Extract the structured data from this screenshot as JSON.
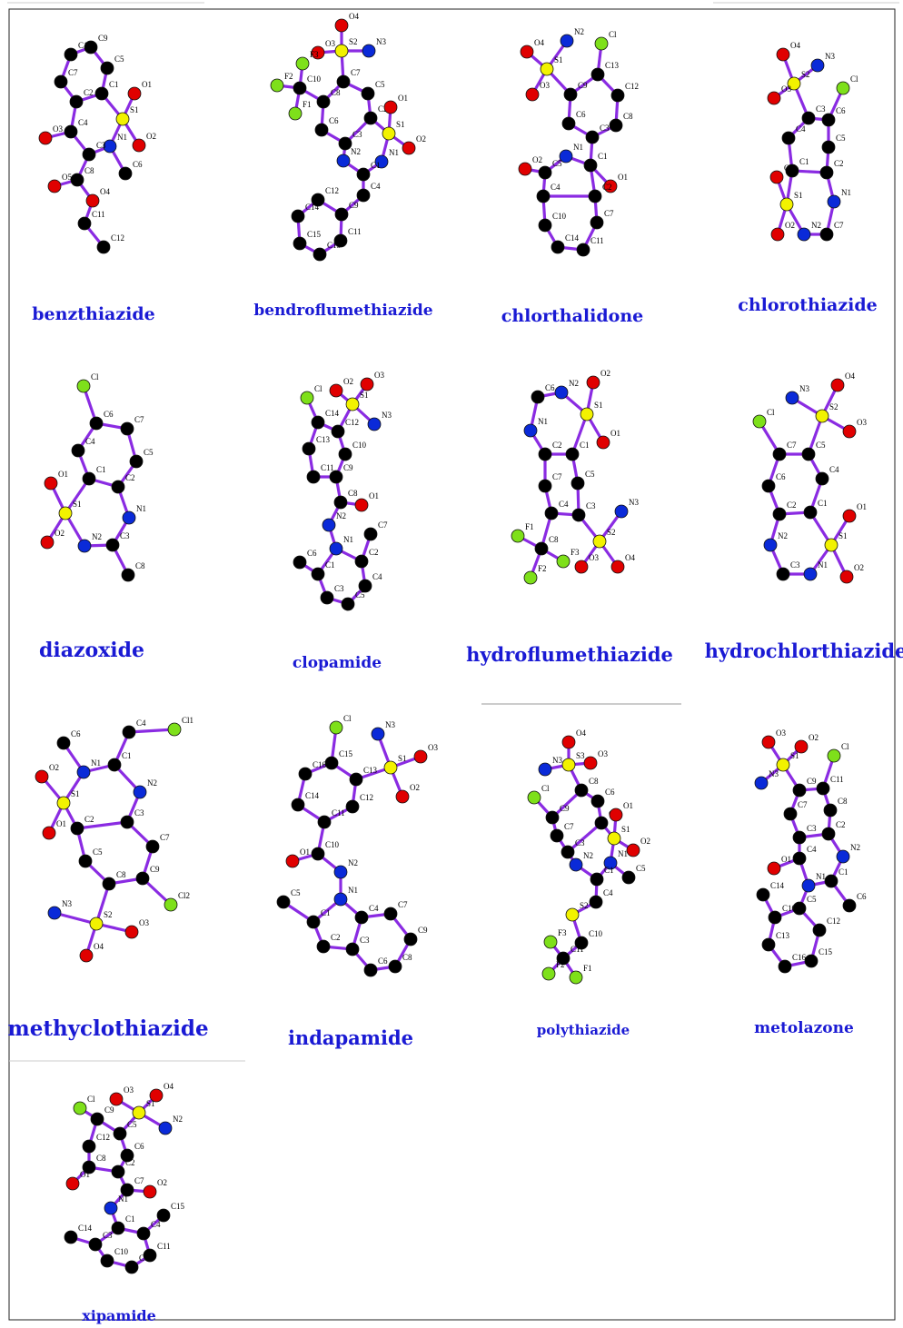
{
  "colors": {
    "carbon": "#000000",
    "oxygen": "#e00000",
    "nitrogen": "#0a2ad8",
    "sulfur": "#f2f200",
    "halogen": "#7ee01a",
    "bond": "#8a2be2",
    "name": "#1a1ad4"
  },
  "molecules": [
    {
      "name": "benzthiazide",
      "atoms": [
        "C10",
        "C9",
        "C5",
        "C1",
        "C2",
        "C7",
        "C4",
        "O3",
        "S1",
        "O1",
        "O2",
        "N1",
        "C3",
        "C6",
        "C8",
        "O5",
        "O4",
        "C11",
        "C12"
      ],
      "bonds": [
        "C10-C9",
        "C9-C5",
        "C5-C1",
        "C1-C2",
        "C2-C7",
        "C7-C10",
        "C1-S1",
        "S1-O1",
        "S1-O2",
        "S1-N1",
        "C2-C4",
        "C4-O3",
        "C4-C3",
        "C3-N1",
        "N1-C6",
        "C3-C8",
        "C8-O5",
        "C8-O4",
        "O4-C11",
        "C11-C12"
      ]
    },
    {
      "name": "bendroflumethiazide",
      "atoms": [
        "O4",
        "S2",
        "O3",
        "N3",
        "C7",
        "F3",
        "F2",
        "F1",
        "C10",
        "C8",
        "C5",
        "C2",
        "O1",
        "S1",
        "O2",
        "C6",
        "C3",
        "N2",
        "N1",
        "C1",
        "C4",
        "C9",
        "C12",
        "C14",
        "C15",
        "C13",
        "C11"
      ],
      "bonds": [
        "O4-S2",
        "S2-O3",
        "S2-N3",
        "S2-C7",
        "C7-C5",
        "C5-C2",
        "C2-C3",
        "C3-C6",
        "C6-C8",
        "C8-C7",
        "C8-C10",
        "C10-F1",
        "C10-F2",
        "C10-F3",
        "C2-S1",
        "S1-O1",
        "S1-O2",
        "S1-N1",
        "N1-C1",
        "C1-N2",
        "N2-C3",
        "C1-C4",
        "C4-C9",
        "C9-C12",
        "C12-C14",
        "C14-C15",
        "C15-C13",
        "C13-C11",
        "C11-C9"
      ]
    },
    {
      "name": "chlorthalidone",
      "atoms": [
        "N2",
        "S1",
        "O4",
        "O3",
        "Cl",
        "C13",
        "C12",
        "C8",
        "C3",
        "C6",
        "C9",
        "N1",
        "C5",
        "O2",
        "C1",
        "O1",
        "C4",
        "C2",
        "C10",
        "C7",
        "C14",
        "C11"
      ],
      "bonds": [
        "S1-N2",
        "S1-O4",
        "S1-O3",
        "S1-C9",
        "C9-C13",
        "C13-C12",
        "C12-C8",
        "C8-C3",
        "C3-C6",
        "C6-C9",
        "C13-Cl",
        "C3-C1",
        "C1-N1",
        "N1-C5",
        "C5-O2",
        "C5-C4",
        "C4-C2",
        "C2-C1",
        "C1-O1",
        "C4-C10",
        "C10-C14",
        "C14-C11",
        "C11-C7",
        "C7-C2"
      ]
    },
    {
      "name": "chlorothiazide",
      "atoms": [
        "O4",
        "S2",
        "N3",
        "O3",
        "Cl",
        "C3",
        "C6",
        "C4",
        "C5",
        "C1",
        "C2",
        "O1",
        "S1",
        "N1",
        "O2",
        "N2",
        "C7"
      ],
      "bonds": [
        "S2-O4",
        "S2-O3",
        "S2-N3",
        "S2-C3",
        "C3-C6",
        "C6-C5",
        "C5-C2",
        "C2-C1",
        "C1-C4",
        "C4-C3",
        "C6-Cl",
        "C1-S1",
        "S1-O1",
        "S1-O2",
        "S1-N2",
        "N2-C7",
        "C7-N1",
        "N1-C2"
      ]
    },
    {
      "name": "diazoxide",
      "atoms": [
        "Cl",
        "C6",
        "C7",
        "C4",
        "C5",
        "C1",
        "C2",
        "O1",
        "S1",
        "N1",
        "O2",
        "N2",
        "C3",
        "C8"
      ],
      "bonds": [
        "Cl-C6",
        "C6-C7",
        "C7-C5",
        "C5-C2",
        "C2-C1",
        "C1-C4",
        "C4-C6",
        "C1-S1",
        "S1-O1",
        "S1-O2",
        "S1-N2",
        "N2-C3",
        "C3-N1",
        "N1-C2",
        "C3-C8"
      ]
    },
    {
      "name": "clopamide",
      "atoms": [
        "Cl",
        "O2",
        "S1",
        "O3",
        "N3",
        "C14",
        "C12",
        "C13",
        "C10",
        "C11",
        "C9",
        "C8",
        "O1",
        "N2",
        "N1",
        "C7",
        "C2",
        "C6",
        "C1",
        "C4",
        "C3",
        "C5"
      ],
      "bonds": [
        "C14-Cl",
        "C14-C12",
        "C12-C10",
        "C10-C9",
        "C9-C11",
        "C11-C13",
        "C13-C14",
        "C12-S1",
        "S1-O2",
        "S1-O3",
        "S1-N3",
        "C9-C8",
        "C8-O1",
        "C8-N2",
        "N2-N1",
        "N1-C2",
        "C2-C4",
        "C4-C5",
        "C5-C3",
        "C3-C1",
        "C1-N1",
        "C2-C7",
        "C1-C6"
      ]
    },
    {
      "name": "hydroflumethiazide",
      "atoms": [
        "C6",
        "N2",
        "O2",
        "S1",
        "O1",
        "N1",
        "C2",
        "C1",
        "C7",
        "C5",
        "C4",
        "C3",
        "F1",
        "F3",
        "F2",
        "C8",
        "S2",
        "N3",
        "O3",
        "O4"
      ],
      "bonds": [
        "C6-N2",
        "N2-S1",
        "S1-O2",
        "S1-O1",
        "S1-C1",
        "C6-N1",
        "N1-C2",
        "C2-C1",
        "C1-C5",
        "C5-C3",
        "C3-C4",
        "C4-C7",
        "C7-C2",
        "C4-C8",
        "C8-F1",
        "C8-F2",
        "C8-F3",
        "C3-S2",
        "S2-N3",
        "S2-O3",
        "S2-O4"
      ]
    },
    {
      "name": "hydrochlorthiazide",
      "atoms": [
        "N3",
        "S2",
        "O4",
        "O3",
        "Cl",
        "C7",
        "C5",
        "C6",
        "C4",
        "C2",
        "C1",
        "O1",
        "S1",
        "O2",
        "N2",
        "C3",
        "N1"
      ],
      "bonds": [
        "C7-C5",
        "C5-C4",
        "C4-C1",
        "C1-C2",
        "C2-C6",
        "C6-C7",
        "C7-Cl",
        "C5-S2",
        "S2-N3",
        "S2-O4",
        "S2-O3",
        "C1-S1",
        "S1-O1",
        "S1-O2",
        "S1-N1",
        "N1-C3",
        "C3-N2",
        "N2-C2"
      ]
    },
    {
      "name": "methyclothiazide",
      "atoms": [
        "C6",
        "C4",
        "Cl1",
        "C1",
        "N1",
        "N2",
        "O2",
        "S1",
        "O1",
        "C2",
        "C3",
        "C5",
        "C7",
        "C8",
        "C9",
        "Cl2",
        "N3",
        "S2",
        "O3",
        "O4"
      ],
      "bonds": [
        "C6-N1",
        "C1-N1",
        "C1-C4",
        "C4-Cl1",
        "C1-N2",
        "N2-C3",
        "N1-S1",
        "S1-O2",
        "S1-O1",
        "S1-C2",
        "C2-C3",
        "C3-C7",
        "C7-C9",
        "C9-C8",
        "C8-C5",
        "C5-C2",
        "C9-Cl2",
        "C8-S2",
        "S2-N3",
        "S2-O3",
        "S2-O4"
      ]
    },
    {
      "name": "indapamide",
      "atoms": [
        "Cl",
        "N3",
        "S1",
        "O3",
        "O2",
        "C16",
        "C15",
        "C13",
        "C14",
        "C12",
        "C11",
        "C10",
        "O1",
        "N2",
        "N1",
        "C5",
        "C1",
        "C4",
        "C7",
        "C9",
        "C2",
        "C3",
        "C8",
        "C6"
      ],
      "bonds": [
        "Cl-C15",
        "C15-C13",
        "C13-C12",
        "C12-C11",
        "C11-C14",
        "C14-C16",
        "C16-C15",
        "C13-S1",
        "S1-N3",
        "S1-O3",
        "S1-O2",
        "C11-C10",
        "C10-O1",
        "C10-N2",
        "N2-N1",
        "N1-C1",
        "C1-C5",
        "C1-C2",
        "C2-C3",
        "C3-C4",
        "C4-N1",
        "C4-C7",
        "C7-C9",
        "C9-C8",
        "C8-C6",
        "C6-C3"
      ]
    },
    {
      "name": "polythiazide",
      "atoms": [
        "O4",
        "S3",
        "N3",
        "O3",
        "C8",
        "Cl",
        "C6",
        "C9",
        "C2",
        "O1",
        "S1",
        "O2",
        "C7",
        "C3",
        "N2",
        "N1",
        "C5",
        "C1",
        "C4",
        "S2",
        "C10",
        "C11",
        "F3",
        "F2",
        "F1"
      ],
      "bonds": [
        "S3-O4",
        "S3-N3",
        "S3-O3",
        "S3-C8",
        "C8-C6",
        "C6-C2",
        "C2-C3",
        "C3-C7",
        "C7-C9",
        "C9-C8",
        "C9-Cl",
        "C2-S1",
        "S1-O1",
        "S1-O2",
        "S1-N1",
        "N1-C1",
        "C1-N2",
        "N2-C3",
        "N1-C5",
        "C1-C4",
        "C4-S2",
        "S2-C10",
        "C10-C11",
        "C11-F1",
        "C11-F2",
        "C11-F3"
      ]
    },
    {
      "name": "metolazone",
      "atoms": [
        "O3",
        "O2",
        "S1",
        "Cl",
        "N3",
        "C9",
        "C11",
        "C7",
        "C8",
        "C3",
        "C2",
        "C4",
        "N2",
        "O1",
        "N1",
        "C1",
        "C6",
        "C14",
        "C5",
        "C12",
        "C15",
        "C16",
        "C13",
        "C10"
      ],
      "bonds": [
        "S1-O3",
        "S1-O2",
        "S1-N3",
        "S1-C9",
        "C9-C11",
        "C11-C8",
        "C8-C2",
        "C2-C3",
        "C3-C7",
        "C7-C9",
        "C11-Cl",
        "C3-C4",
        "C4-O1",
        "C4-N1",
        "N1-C1",
        "C1-N2",
        "N2-C2",
        "C1-C6",
        "N1-C5",
        "C5-C12",
        "C12-C15",
        "C15-C16",
        "C16-C13",
        "C13-C10",
        "C10-C5",
        "C10-C14"
      ]
    },
    {
      "name": "xipamide",
      "atoms": [
        "O3",
        "S1",
        "O4",
        "N2",
        "Cl",
        "C9",
        "C5",
        "C12",
        "C6",
        "C8",
        "C2",
        "O1",
        "C7",
        "O2",
        "N1",
        "C1",
        "C15",
        "C4",
        "C14",
        "C3",
        "C11",
        "C10",
        "C13"
      ],
      "bonds": [
        "S1-O3",
        "S1-O4",
        "S1-N2",
        "S1-C5",
        "C9-C5",
        "C5-C6",
        "C6-C2",
        "C2-C8",
        "C8-C12",
        "C12-C9",
        "C9-Cl",
        "C8-O1",
        "C2-C7",
        "C7-O2",
        "C7-N1",
        "N1-C1",
        "C1-C4",
        "C4-C11",
        "C11-C13",
        "C13-C10",
        "C10-C3",
        "C3-C1",
        "C4-C15",
        "C3-C14"
      ]
    }
  ]
}
